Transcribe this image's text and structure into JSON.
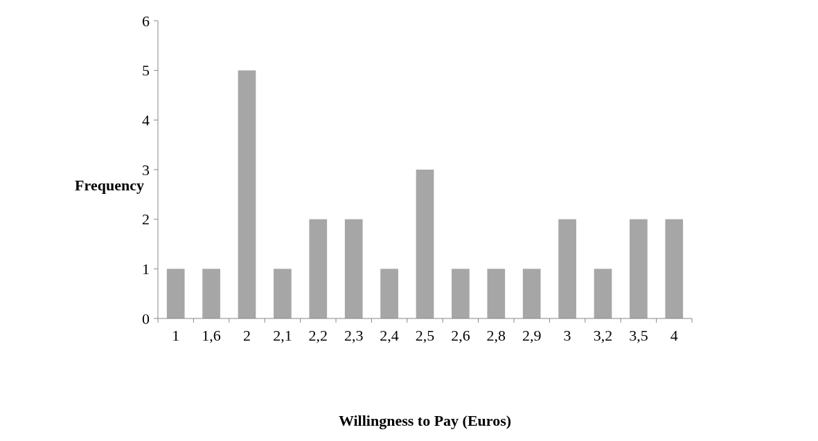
{
  "chart_data": {
    "type": "bar",
    "xlabel": "Willingness to Pay (Euros)",
    "ylabel": "Frequency",
    "categories": [
      "1",
      "1,6",
      "2",
      "2,1",
      "2,2",
      "2,3",
      "2,4",
      "2,5",
      "2,6",
      "2,8",
      "2,9",
      "3",
      "3,2",
      "3,5",
      "4"
    ],
    "values": [
      1,
      1,
      5,
      1,
      2,
      2,
      1,
      3,
      1,
      1,
      1,
      2,
      1,
      2,
      2
    ],
    "color": "#a6a6a6",
    "ylim": [
      0,
      6
    ],
    "yticks": [
      0,
      1,
      2,
      3,
      4,
      5,
      6
    ],
    "grid": false
  }
}
